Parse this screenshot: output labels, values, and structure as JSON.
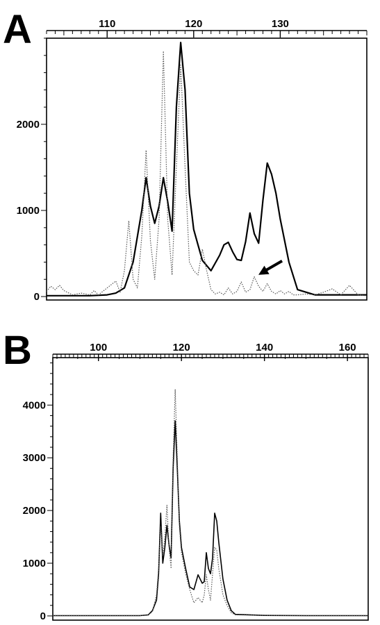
{
  "figure": {
    "panels": [
      {
        "letter": "A"
      },
      {
        "letter": "B"
      }
    ]
  },
  "colors": {
    "ink": "#000000",
    "dotted_series": "#555555"
  },
  "chart_data": [
    {
      "type": "line",
      "panel": "A",
      "title": "",
      "xlabel": "",
      "ylabel": "",
      "xlim": [
        103,
        140
      ],
      "ylim": [
        -40,
        3000
      ],
      "x_ticks": [
        110,
        120,
        130
      ],
      "y_ticks": [
        0,
        1000,
        2000
      ],
      "x_axis_position": "top",
      "grid": false,
      "legend": "none",
      "annotations": [
        {
          "type": "arrow",
          "points_to_x": 127,
          "points_to_y": 220
        }
      ],
      "series": [
        {
          "style": "solid-bold",
          "x": [
            103,
            106,
            108,
            110,
            111,
            112,
            113,
            114,
            114.5,
            115,
            115.5,
            116,
            116.5,
            117,
            117.5,
            118,
            118.5,
            119,
            119.5,
            120,
            120.5,
            121,
            122,
            123,
            123.5,
            124,
            124.5,
            125,
            125.5,
            126,
            126.5,
            127,
            127.5,
            128,
            128.5,
            129,
            129.5,
            130,
            131,
            132,
            134,
            137,
            140
          ],
          "y": [
            10,
            10,
            10,
            20,
            40,
            100,
            400,
            1000,
            1380,
            1050,
            850,
            1050,
            1380,
            1100,
            760,
            2200,
            2950,
            2400,
            1200,
            780,
            600,
            420,
            300,
            480,
            600,
            630,
            520,
            430,
            420,
            640,
            970,
            730,
            620,
            1120,
            1550,
            1420,
            1200,
            900,
            400,
            80,
            20,
            20,
            20
          ]
        },
        {
          "style": "dotted",
          "x": [
            103,
            103.5,
            104,
            104.5,
            105,
            106,
            107,
            108,
            108.5,
            109,
            110,
            111,
            111.5,
            112,
            112.5,
            113,
            113.5,
            114,
            114.5,
            115,
            115.5,
            116,
            116.5,
            117,
            117.5,
            118,
            118.5,
            119,
            119.5,
            120,
            120.5,
            121,
            121.5,
            122,
            122.5,
            123,
            123.5,
            124,
            124.5,
            125,
            125.5,
            126,
            126.5,
            127,
            127.5,
            128,
            128.5,
            129,
            129.5,
            130,
            130.5,
            131,
            131.5,
            132,
            133,
            134,
            135,
            136,
            137,
            138,
            139,
            140
          ],
          "y": [
            60,
            120,
            80,
            130,
            70,
            20,
            40,
            20,
            70,
            20,
            100,
            180,
            50,
            300,
            880,
            200,
            100,
            700,
            1700,
            650,
            200,
            900,
            2850,
            900,
            250,
            1500,
            2700,
            1500,
            400,
            300,
            250,
            550,
            300,
            80,
            30,
            50,
            20,
            100,
            30,
            60,
            170,
            50,
            80,
            230,
            120,
            60,
            150,
            60,
            30,
            70,
            30,
            60,
            20,
            20,
            30,
            20,
            50,
            90,
            20,
            130,
            20,
            10
          ]
        }
      ]
    },
    {
      "type": "line",
      "panel": "B",
      "title": "",
      "xlabel": "",
      "ylabel": "",
      "xlim": [
        89,
        165
      ],
      "ylim": [
        -80,
        4900
      ],
      "x_ticks": [
        100,
        120,
        140,
        160
      ],
      "y_ticks": [
        0,
        1000,
        2000,
        3000,
        4000
      ],
      "x_axis_position": "top",
      "grid": false,
      "legend": "none",
      "series": [
        {
          "style": "solid",
          "x": [
            89,
            100,
            110,
            112,
            113,
            114,
            114.5,
            115,
            115.5,
            116,
            116.5,
            117,
            117.5,
            118,
            118.5,
            119,
            119.5,
            120,
            121,
            122,
            123,
            124,
            124.5,
            125,
            125.5,
            126,
            126.5,
            127,
            127.5,
            128,
            128.5,
            129,
            130,
            131,
            132,
            133,
            140,
            150,
            165
          ],
          "y": [
            5,
            5,
            5,
            20,
            100,
            300,
            800,
            1950,
            1000,
            1300,
            1720,
            1350,
            1100,
            2800,
            3700,
            2800,
            1800,
            1300,
            900,
            550,
            500,
            780,
            700,
            620,
            650,
            1200,
            900,
            800,
            1100,
            1950,
            1800,
            1400,
            700,
            300,
            100,
            30,
            10,
            5,
            5
          ]
        },
        {
          "style": "dotted",
          "x": [
            89,
            100,
            110,
            112,
            113,
            114,
            114.5,
            115,
            115.5,
            116,
            116.5,
            117,
            117.5,
            118,
            118.5,
            119,
            119.5,
            120,
            121,
            122,
            123,
            124,
            124.5,
            125,
            125.5,
            126,
            126.5,
            127,
            127.5,
            128,
            128.5,
            129,
            130,
            131,
            132,
            133,
            140,
            150,
            165
          ],
          "y": [
            5,
            5,
            5,
            20,
            80,
            400,
            900,
            1700,
            1150,
            1500,
            2100,
            1300,
            900,
            3000,
            4300,
            3000,
            1700,
            1200,
            800,
            500,
            250,
            350,
            300,
            250,
            400,
            780,
            500,
            300,
            800,
            1300,
            1250,
            900,
            400,
            200,
            60,
            20,
            10,
            5,
            5
          ]
        }
      ]
    }
  ]
}
